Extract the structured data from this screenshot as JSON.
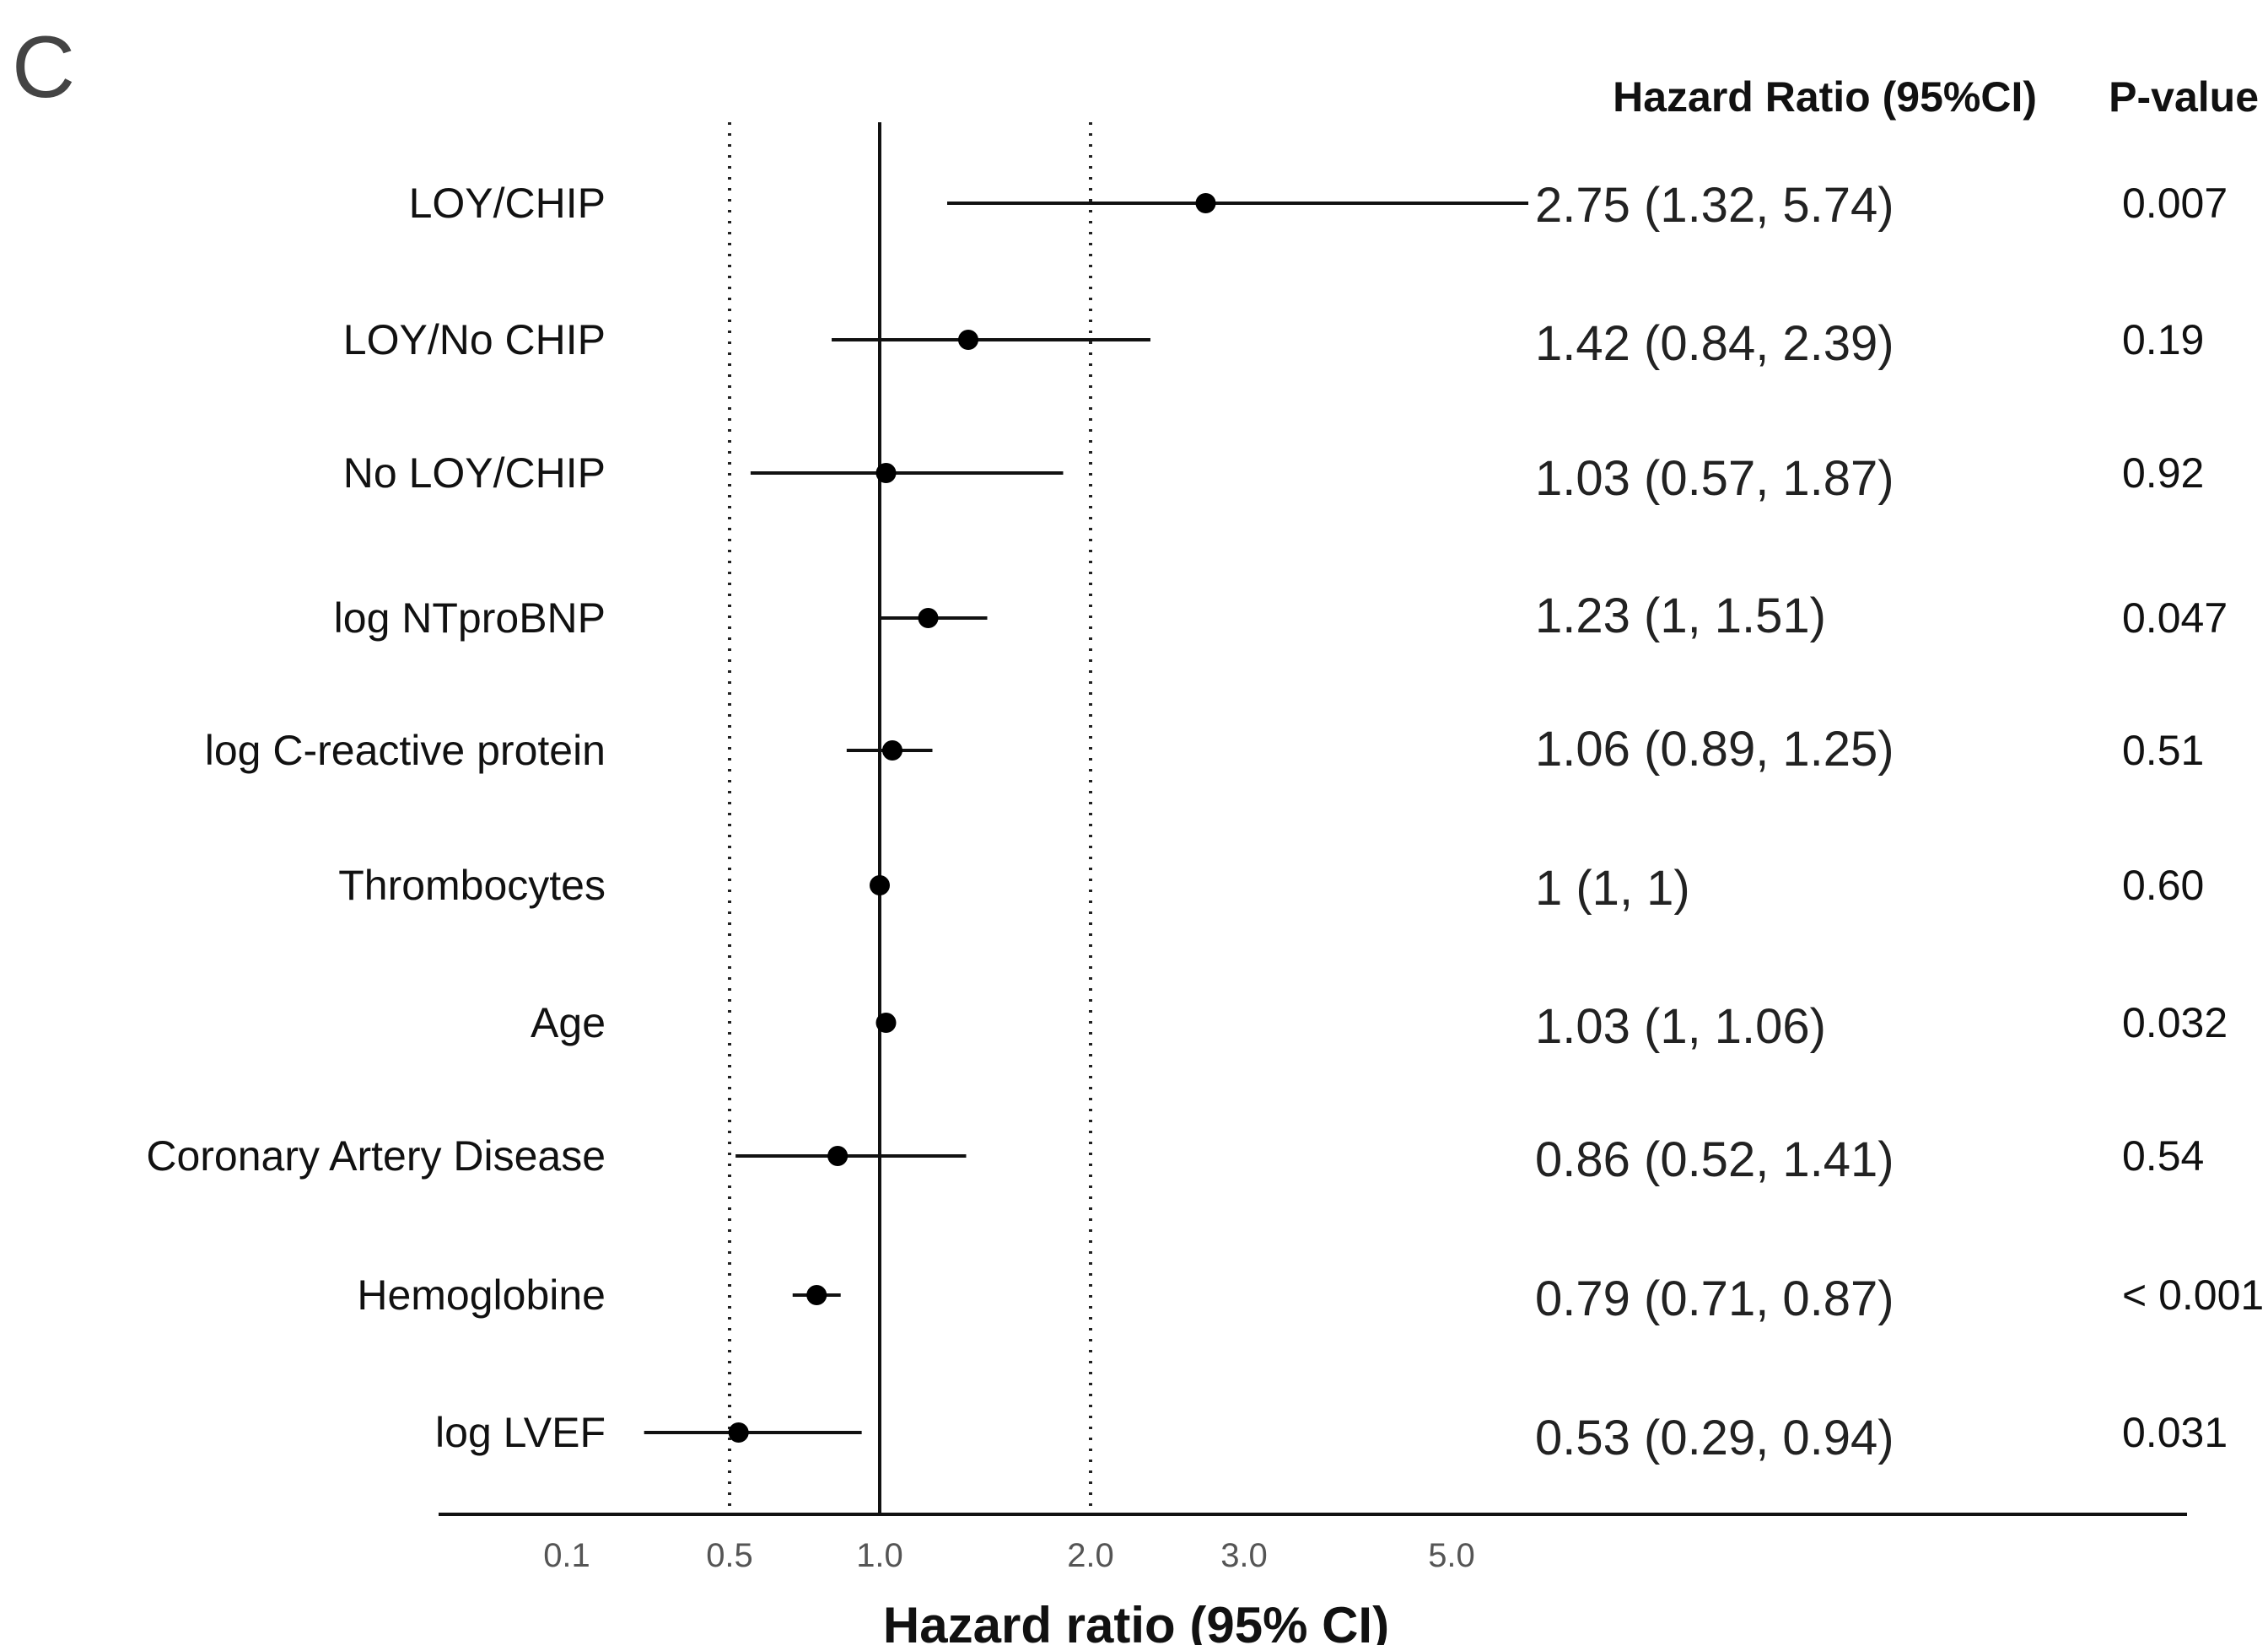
{
  "panel_label": "C",
  "columns": {
    "hr_header": "Hazard Ratio (95%CI)",
    "p_header": "P-value"
  },
  "chart_data": {
    "type": "forest",
    "xlabel": "Hazard ratio (95% CI)",
    "xticks": [
      "0.1",
      "0.5",
      "1.0",
      "2.0",
      "3.0",
      "5.0"
    ],
    "reference_line": 1.0,
    "dotted_lines": [
      0.5,
      2.0
    ],
    "rows": [
      {
        "label": "LOY/CHIP",
        "hr": 2.75,
        "lo": 1.32,
        "hi": 5.74,
        "hr_text": "2.75 (1.32, 5.74)",
        "p": "0.007"
      },
      {
        "label": "LOY/No CHIP",
        "hr": 1.42,
        "lo": 0.84,
        "hi": 2.39,
        "hr_text": "1.42 (0.84, 2.39)",
        "p": "0.19"
      },
      {
        "label": "No LOY/CHIP",
        "hr": 1.03,
        "lo": 0.57,
        "hi": 1.87,
        "hr_text": "1.03 (0.57, 1.87)",
        "p": "0.92"
      },
      {
        "label": "log NTproBNP",
        "hr": 1.23,
        "lo": 1.0,
        "hi": 1.51,
        "hr_text": "1.23 (1, 1.51)",
        "p": "0.047"
      },
      {
        "label": "log C-reactive protein",
        "hr": 1.06,
        "lo": 0.89,
        "hi": 1.25,
        "hr_text": "1.06 (0.89, 1.25)",
        "p": "0.51"
      },
      {
        "label": "Thrombocytes",
        "hr": 1.0,
        "lo": 1.0,
        "hi": 1.0,
        "hr_text": "1 (1, 1)",
        "p": "0.60"
      },
      {
        "label": "Age",
        "hr": 1.03,
        "lo": 1.0,
        "hi": 1.06,
        "hr_text": "1.03 (1, 1.06)",
        "p": "0.032"
      },
      {
        "label": "Coronary Artery Disease",
        "hr": 0.86,
        "lo": 0.52,
        "hi": 1.41,
        "hr_text": "0.86 (0.52, 1.41)",
        "p": "0.54"
      },
      {
        "label": "Hemoglobine",
        "hr": 0.79,
        "lo": 0.71,
        "hi": 0.87,
        "hr_text": "0.79 (0.71, 0.87)",
        "p": "< 0.001"
      },
      {
        "label": "log LVEF",
        "hr": 0.53,
        "lo": 0.29,
        "hi": 0.94,
        "hr_text": "0.53 (0.29, 0.94)",
        "p": "0.031"
      }
    ]
  }
}
